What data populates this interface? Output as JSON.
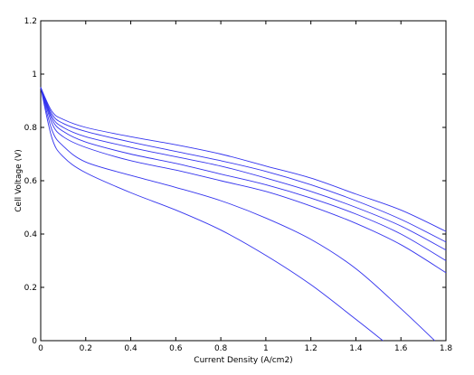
{
  "chart_data": {
    "type": "line",
    "title": "",
    "xlabel": "Current Density (A/cm2)",
    "ylabel": "Cell Voltage (V)",
    "xlim": [
      0,
      1.8
    ],
    "ylim": [
      0,
      1.2
    ],
    "xticks": [
      0,
      0.2,
      0.4,
      0.6,
      0.8,
      1,
      1.2,
      1.4,
      1.6,
      1.8
    ],
    "xtick_labels": [
      "0",
      "0.2",
      "0.4",
      "0.6",
      "0.8",
      "1",
      "1.2",
      "1.4",
      "1.6",
      "1.8"
    ],
    "yticks": [
      0,
      0.2,
      0.4,
      0.6,
      0.8,
      1,
      1.2
    ],
    "ytick_labels": [
      "0",
      "0.2",
      "0.4",
      "0.6",
      "0.8",
      "1",
      "1.2"
    ],
    "grid": false,
    "line_color": "#3333ee",
    "series": [
      {
        "x": [
          0,
          0.05,
          0.1,
          0.2,
          0.4,
          0.6,
          0.8,
          1.0,
          1.2,
          1.4,
          1.6,
          1.8
        ],
        "y": [
          0.95,
          0.86,
          0.83,
          0.8,
          0.765,
          0.735,
          0.7,
          0.655,
          0.61,
          0.55,
          0.49,
          0.41
        ]
      },
      {
        "x": [
          0,
          0.05,
          0.1,
          0.2,
          0.4,
          0.6,
          0.8,
          1.0,
          1.2,
          1.4,
          1.6,
          1.8
        ],
        "y": [
          0.95,
          0.85,
          0.815,
          0.785,
          0.745,
          0.71,
          0.675,
          0.635,
          0.585,
          0.525,
          0.455,
          0.37
        ]
      },
      {
        "x": [
          0,
          0.05,
          0.1,
          0.2,
          0.4,
          0.6,
          0.8,
          1.0,
          1.2,
          1.4,
          1.6,
          1.8
        ],
        "y": [
          0.95,
          0.84,
          0.8,
          0.765,
          0.725,
          0.69,
          0.655,
          0.61,
          0.56,
          0.5,
          0.43,
          0.34
        ]
      },
      {
        "x": [
          0,
          0.05,
          0.1,
          0.2,
          0.4,
          0.6,
          0.8,
          1.0,
          1.2,
          1.4,
          1.6,
          1.8
        ],
        "y": [
          0.95,
          0.83,
          0.785,
          0.745,
          0.7,
          0.665,
          0.625,
          0.585,
          0.535,
          0.475,
          0.4,
          0.3
        ]
      },
      {
        "x": [
          0,
          0.05,
          0.1,
          0.2,
          0.4,
          0.6,
          0.8,
          1.0,
          1.2,
          1.4,
          1.6,
          1.8
        ],
        "y": [
          0.95,
          0.815,
          0.765,
          0.725,
          0.675,
          0.64,
          0.6,
          0.56,
          0.505,
          0.44,
          0.36,
          0.255
        ]
      },
      {
        "x": [
          0,
          0.05,
          0.1,
          0.2,
          0.4,
          0.6,
          0.8,
          1.0,
          1.2,
          1.4,
          1.6,
          1.75
        ],
        "y": [
          0.95,
          0.79,
          0.73,
          0.67,
          0.62,
          0.575,
          0.525,
          0.46,
          0.38,
          0.27,
          0.12,
          0.0
        ]
      },
      {
        "x": [
          0,
          0.05,
          0.1,
          0.2,
          0.4,
          0.6,
          0.8,
          1.0,
          1.2,
          1.4,
          1.52
        ],
        "y": [
          0.95,
          0.76,
          0.69,
          0.63,
          0.555,
          0.49,
          0.415,
          0.32,
          0.21,
          0.08,
          0.0
        ]
      }
    ]
  }
}
